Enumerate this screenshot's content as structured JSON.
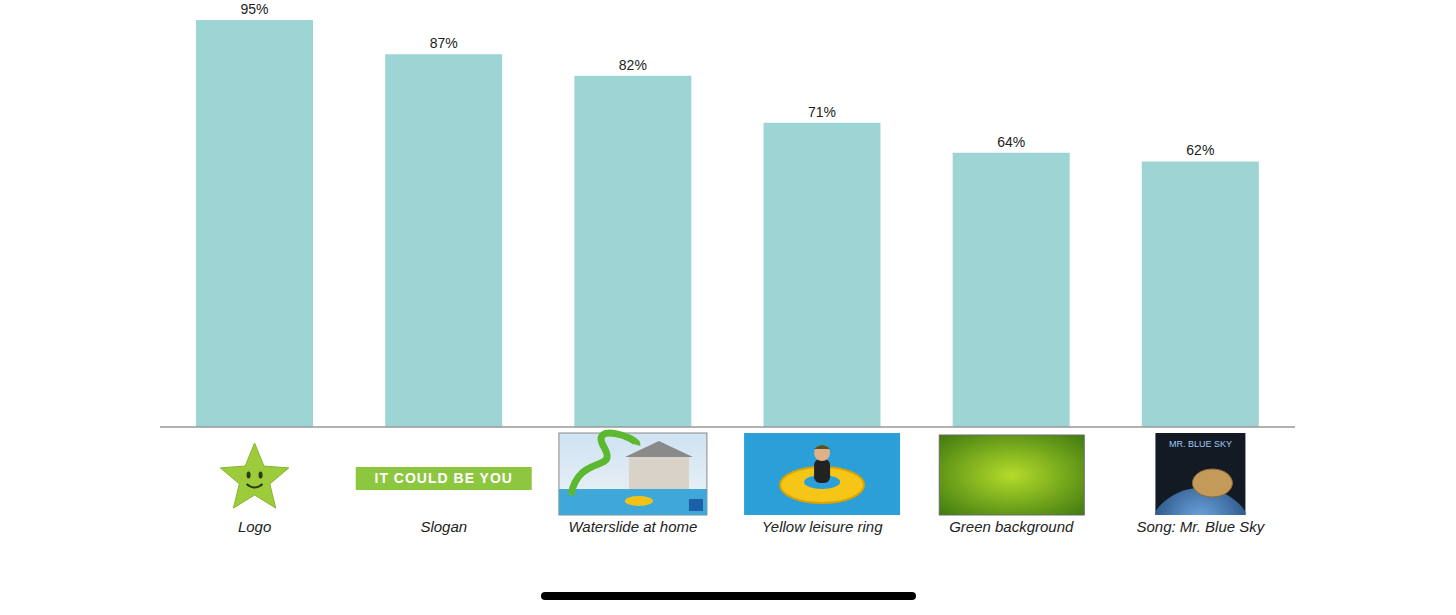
{
  "chart_data": {
    "type": "bar",
    "categories": [
      "Logo",
      "Slogan",
      "Waterslide at home",
      "Yellow leisure ring",
      "Green background",
      "Song: Mr. Blue Sky"
    ],
    "values": [
      95,
      87,
      82,
      71,
      64,
      62
    ],
    "value_labels": [
      "95%",
      "87%",
      "82%",
      "71%",
      "64%",
      "62%"
    ],
    "color": "#9dd5d5",
    "data_labels": true,
    "tick_labels": "x",
    "icon_texts": [
      null,
      "IT COULD BE YOU",
      null,
      null,
      null,
      "MR. BLUE SKY"
    ]
  }
}
